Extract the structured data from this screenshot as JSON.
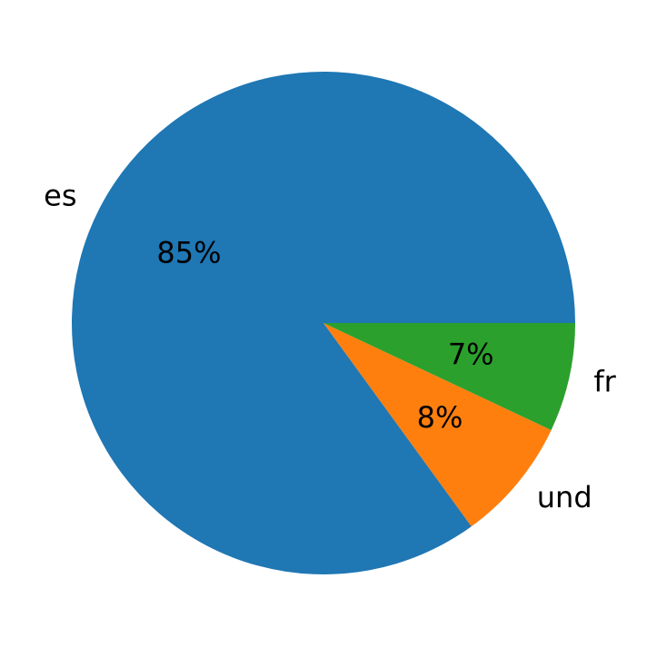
{
  "chart_data": {
    "type": "pie",
    "categories": [
      "es",
      "und",
      "fr"
    ],
    "values": [
      85,
      8,
      7
    ],
    "value_labels": [
      "85%",
      "8%",
      "7%"
    ],
    "colors": [
      "#1f77b4",
      "#ff7f0e",
      "#2ca02c"
    ]
  }
}
